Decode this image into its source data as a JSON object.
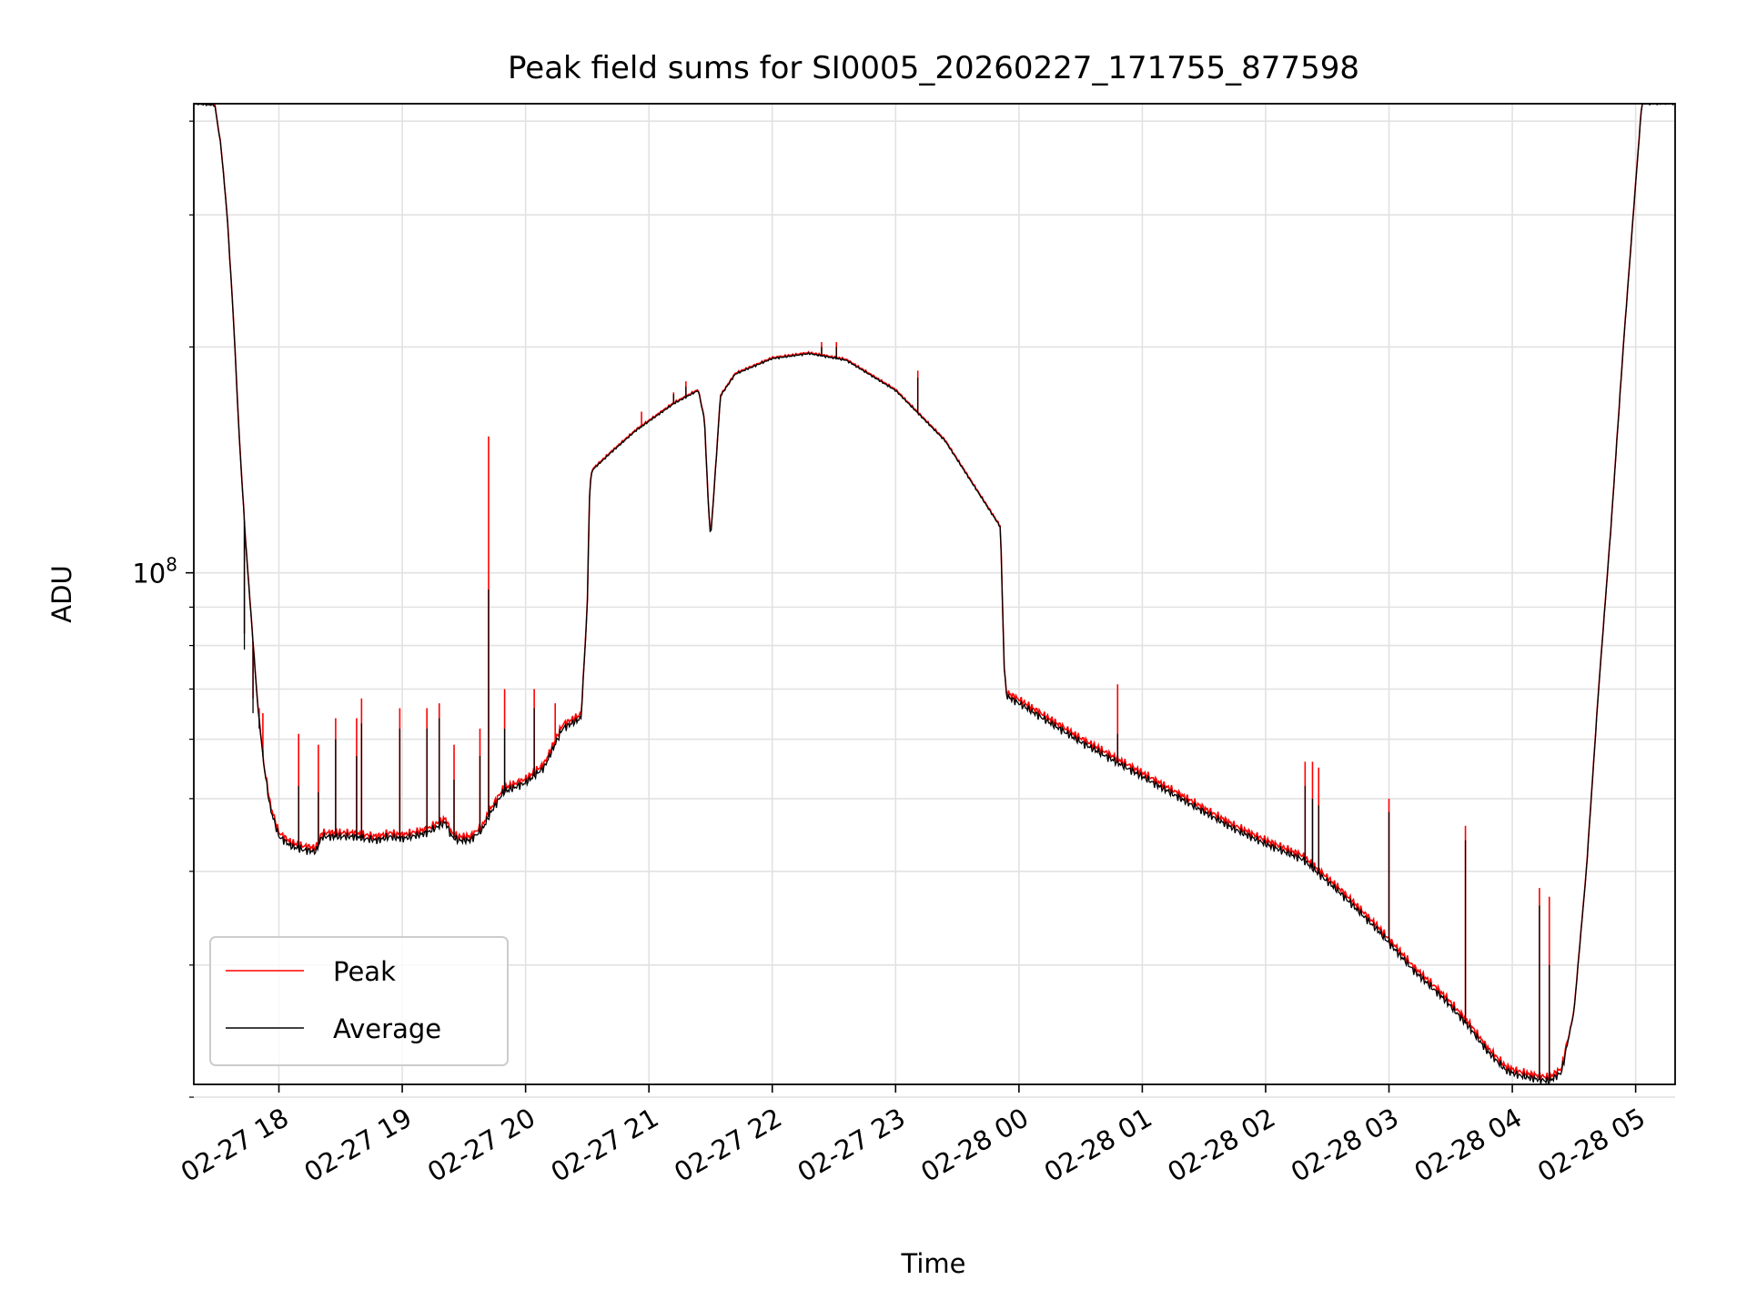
{
  "chart_data": {
    "type": "line",
    "title": "Peak field sums for SI0005_20260227_171755_877598",
    "xlabel": "Time",
    "ylabel": "ADU",
    "yscale": "log",
    "ylim": [
      20800000.0,
      422000000.0
    ],
    "xlim_hours_since_2026_02_27_17": [
      0.31,
      12.32
    ],
    "x_ticks": [
      {
        "hour": 1,
        "label": "02-27 18"
      },
      {
        "hour": 2,
        "label": "02-27 19"
      },
      {
        "hour": 3,
        "label": "02-27 20"
      },
      {
        "hour": 4,
        "label": "02-27 21"
      },
      {
        "hour": 5,
        "label": "02-27 22"
      },
      {
        "hour": 6,
        "label": "02-27 23"
      },
      {
        "hour": 7,
        "label": "02-28 00"
      },
      {
        "hour": 8,
        "label": "02-28 01"
      },
      {
        "hour": 9,
        "label": "02-28 02"
      },
      {
        "hour": 10,
        "label": "02-28 03"
      },
      {
        "hour": 11,
        "label": "02-28 04"
      },
      {
        "hour": 12,
        "label": "02-28 05"
      }
    ],
    "y_major_tick": {
      "value": 100000000,
      "label_base": "10",
      "label_exp": "8"
    },
    "y_minor_ticks": [
      20000000.0,
      30000000.0,
      40000000.0,
      50000000.0,
      60000000.0,
      70000000.0,
      80000000.0,
      90000000.0,
      200000000.0,
      300000000.0,
      400000000.0
    ],
    "grid": true,
    "legend_position": "lower-left",
    "series": [
      {
        "name": "Peak",
        "color": "#ff0000"
      },
      {
        "name": "Average",
        "color": "#000000"
      }
    ],
    "average_points": [
      [
        0.31,
        422000000.0
      ],
      [
        0.48,
        420000000.0
      ],
      [
        0.53,
        370000000.0
      ],
      [
        0.58,
        300000000.0
      ],
      [
        0.63,
        220000000.0
      ],
      [
        0.68,
        150000000.0
      ],
      [
        0.73,
        110000000.0
      ],
      [
        0.78,
        85000000.0
      ],
      [
        0.83,
        66000000.0
      ],
      [
        0.88,
        55000000.0
      ],
      [
        0.93,
        48500000.0
      ],
      [
        1.0,
        44500000.0
      ],
      [
        1.1,
        43200000.0
      ],
      [
        1.2,
        42700000.0
      ],
      [
        1.3,
        42500000.0
      ],
      [
        1.35,
        44500000.0
      ],
      [
        1.6,
        44500000.0
      ],
      [
        1.7,
        44200000.0
      ],
      [
        1.8,
        44000000.0
      ],
      [
        1.9,
        44500000.0
      ],
      [
        2.0,
        44200000.0
      ],
      [
        2.2,
        45000000.0
      ],
      [
        2.35,
        46500000.0
      ],
      [
        2.4,
        44500000.0
      ],
      [
        2.45,
        44000000.0
      ],
      [
        2.55,
        44000000.0
      ],
      [
        2.65,
        45500000.0
      ],
      [
        2.72,
        48000000.0
      ],
      [
        2.82,
        51000000.0
      ],
      [
        3.0,
        52500000.0
      ],
      [
        3.15,
        55000000.0
      ],
      [
        3.3,
        62000000.0
      ],
      [
        3.45,
        64000000.0
      ],
      [
        3.5,
        90000000.0
      ],
      [
        3.52,
        130000000.0
      ],
      [
        3.54,
        137000000.0
      ],
      [
        3.7,
        145000000.0
      ],
      [
        3.9,
        155000000.0
      ],
      [
        4.2,
        168000000.0
      ],
      [
        4.4,
        175000000.0
      ],
      [
        4.45,
        160000000.0
      ],
      [
        4.48,
        125000000.0
      ],
      [
        4.5,
        111000000.0
      ],
      [
        4.53,
        130000000.0
      ],
      [
        4.58,
        172000000.0
      ],
      [
        4.7,
        184000000.0
      ],
      [
        5.0,
        193000000.0
      ],
      [
        5.3,
        196000000.0
      ],
      [
        5.6,
        192000000.0
      ],
      [
        6.0,
        175000000.0
      ],
      [
        6.4,
        150000000.0
      ],
      [
        6.75,
        122000000.0
      ],
      [
        6.85,
        115000000.0
      ],
      [
        6.88,
        75000000.0
      ],
      [
        6.9,
        68500000.0
      ],
      [
        7.0,
        67000000.0
      ],
      [
        7.5,
        59500000.0
      ],
      [
        8.0,
        53500000.0
      ],
      [
        8.5,
        48000000.0
      ],
      [
        8.75,
        45500000.0
      ],
      [
        9.0,
        43500000.0
      ],
      [
        9.3,
        41500000.0
      ],
      [
        9.6,
        37500000.0
      ],
      [
        9.9,
        33500000.0
      ],
      [
        10.2,
        29500000.0
      ],
      [
        10.45,
        27000000.0
      ],
      [
        10.65,
        24800000.0
      ],
      [
        10.8,
        23000000.0
      ],
      [
        10.95,
        21700000.0
      ],
      [
        11.05,
        21400000.0
      ],
      [
        11.15,
        21200000.0
      ],
      [
        11.3,
        21000000.0
      ],
      [
        11.4,
        21600000.0
      ],
      [
        11.5,
        26000000.0
      ],
      [
        11.6,
        40000000.0
      ],
      [
        11.7,
        70000000.0
      ],
      [
        11.8,
        115000000.0
      ],
      [
        11.9,
        200000000.0
      ],
      [
        12.0,
        330000000.0
      ],
      [
        12.05,
        422000000.0
      ],
      [
        12.32,
        422000000.0
      ]
    ],
    "spikes": [
      {
        "hour": 0.72,
        "peak": 83000000.0,
        "average": 79000000.0
      },
      {
        "hour": 0.79,
        "peak": 68000000.0,
        "average": 65000000.0
      },
      {
        "hour": 0.84,
        "peak": 66000000.0,
        "average": 62000000.0
      },
      {
        "hour": 0.87,
        "peak": 65000000.0,
        "average": 58000000.0
      },
      {
        "hour": 1.16,
        "peak": 61000000.0,
        "average": 52000000.0
      },
      {
        "hour": 1.32,
        "peak": 59000000.0,
        "average": 51000000.0
      },
      {
        "hour": 1.46,
        "peak": 64000000.0,
        "average": 60000000.0
      },
      {
        "hour": 1.63,
        "peak": 64000000.0,
        "average": 57000000.0
      },
      {
        "hour": 1.67,
        "peak": 68000000.0,
        "average": 63000000.0
      },
      {
        "hour": 1.98,
        "peak": 66000000.0,
        "average": 62000000.0
      },
      {
        "hour": 2.2,
        "peak": 66000000.0,
        "average": 62000000.0
      },
      {
        "hour": 2.3,
        "peak": 67000000.0,
        "average": 64000000.0
      },
      {
        "hour": 2.42,
        "peak": 59000000.0,
        "average": 53000000.0
      },
      {
        "hour": 2.63,
        "peak": 62000000.0,
        "average": 57000000.0
      },
      {
        "hour": 2.7,
        "peak": 152000000.0,
        "average": 95000000.0
      },
      {
        "hour": 2.83,
        "peak": 70000000.0,
        "average": 62000000.0
      },
      {
        "hour": 3.07,
        "peak": 70000000.0,
        "average": 66000000.0
      },
      {
        "hour": 3.24,
        "peak": 67000000.0,
        "average": 59000000.0
      },
      {
        "hour": 3.94,
        "peak": 164000000.0,
        "average": 156000000.0
      },
      {
        "hour": 4.2,
        "peak": 174000000.0,
        "average": 173000000.0
      },
      {
        "hour": 4.3,
        "peak": 180000000.0,
        "average": 177000000.0
      },
      {
        "hour": 5.4,
        "peak": 203000000.0,
        "average": 200000000.0
      },
      {
        "hour": 5.52,
        "peak": 203000000.0,
        "average": 200000000.0
      },
      {
        "hour": 6.18,
        "peak": 186000000.0,
        "average": 182000000.0
      },
      {
        "hour": 7.8,
        "peak": 71000000.0,
        "average": 61000000.0
      },
      {
        "hour": 9.32,
        "peak": 56000000.0,
        "average": 52000000.0
      },
      {
        "hour": 9.38,
        "peak": 56000000.0,
        "average": 50000000.0
      },
      {
        "hour": 9.43,
        "peak": 55000000.0,
        "average": 49000000.0
      },
      {
        "hour": 10.0,
        "peak": 50000000.0,
        "average": 48000000.0
      },
      {
        "hour": 10.62,
        "peak": 46000000.0,
        "average": 44000000.0
      },
      {
        "hour": 11.22,
        "peak": 38000000.0,
        "average": 36000000.0
      },
      {
        "hour": 11.3,
        "peak": 37000000.0,
        "average": 30000000.0
      }
    ]
  }
}
